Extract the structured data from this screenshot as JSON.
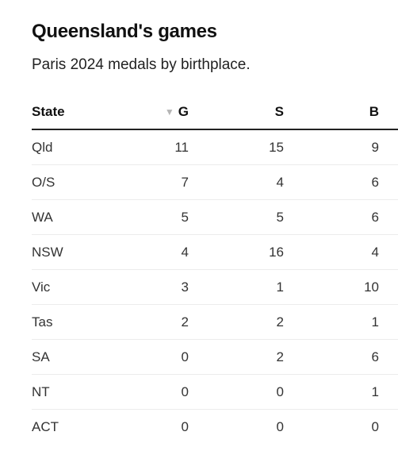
{
  "title": "Queensland's games",
  "subtitle": "Paris 2024 medals by birthplace.",
  "table": {
    "headers": {
      "state": "State",
      "gold": "G",
      "silver": "S",
      "bronze": "B"
    },
    "sort": {
      "column": "G",
      "direction": "descending",
      "indicator": "▼"
    },
    "rows": [
      {
        "state": "Qld",
        "g": "11",
        "s": "15",
        "b": "9"
      },
      {
        "state": "O/S",
        "g": "7",
        "s": "4",
        "b": "6"
      },
      {
        "state": "WA",
        "g": "5",
        "s": "5",
        "b": "6"
      },
      {
        "state": "NSW",
        "g": "4",
        "s": "16",
        "b": "4"
      },
      {
        "state": "Vic",
        "g": "3",
        "s": "1",
        "b": "10"
      },
      {
        "state": "Tas",
        "g": "2",
        "s": "2",
        "b": "1"
      },
      {
        "state": "SA",
        "g": "0",
        "s": "2",
        "b": "6"
      },
      {
        "state": "NT",
        "g": "0",
        "s": "0",
        "b": "1"
      },
      {
        "state": "ACT",
        "g": "0",
        "s": "0",
        "b": "0"
      }
    ]
  },
  "colors": {
    "text": "#1a1a1a",
    "rule": "#222222",
    "row_divider": "#ececec",
    "sort_indicator": "#b5b5b5"
  }
}
